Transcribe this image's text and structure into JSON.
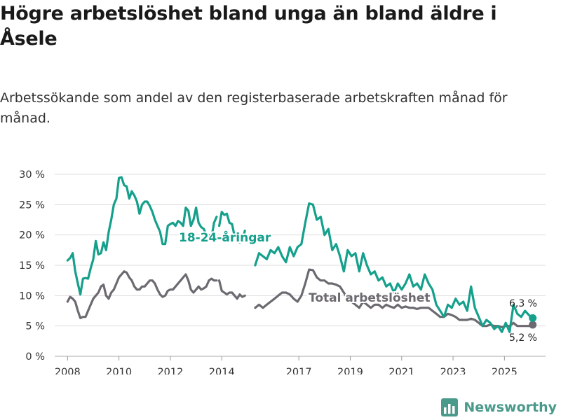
{
  "title": "Högre arbetslöshet bland unga än bland äldre i Åsele",
  "subtitle": "Arbetssökande som andel av den registerbaserade arbetskraften månad för månad.",
  "brand": {
    "name": "Newsworthy",
    "icon": "bar-chart-logo-icon",
    "color": "#4a9a8c"
  },
  "chart_data": {
    "type": "line",
    "ylim": [
      0,
      30
    ],
    "xlim": [
      2007.5,
      2026.6
    ],
    "yticks": [
      {
        "value": 0,
        "label": "0 %"
      },
      {
        "value": 5,
        "label": "5 %"
      },
      {
        "value": 10,
        "label": "10 %"
      },
      {
        "value": 15,
        "label": "15 %"
      },
      {
        "value": 20,
        "label": "20 %"
      },
      {
        "value": 25,
        "label": "25 %"
      },
      {
        "value": 30,
        "label": "30 %"
      }
    ],
    "xticks": [
      {
        "value": 2008,
        "label": "2008"
      },
      {
        "value": 2010,
        "label": "2010"
      },
      {
        "value": 2012,
        "label": "2012"
      },
      {
        "value": 2014,
        "label": "2014"
      },
      {
        "value": 2017,
        "label": "2017"
      },
      {
        "value": 2019,
        "label": "2019"
      },
      {
        "value": 2021,
        "label": "2021"
      },
      {
        "value": 2023,
        "label": "2023"
      },
      {
        "value": 2025,
        "label": "2025"
      }
    ],
    "grid": true,
    "series": [
      {
        "name": "18-24-åringar",
        "label": "18-24-åringar",
        "color": "#15a08c",
        "end_value_label": "6,3 %",
        "segments": [
          {
            "x": [
              2008.0,
              2008.1,
              2008.2,
              2008.3,
              2008.4,
              2008.5,
              2008.6,
              2008.7,
              2008.8,
              2008.9,
              2009.0,
              2009.1,
              2009.2,
              2009.3,
              2009.4,
              2009.5,
              2009.6,
              2009.7,
              2009.8,
              2009.9,
              2010.0,
              2010.1,
              2010.2,
              2010.3,
              2010.4,
              2010.5,
              2010.6,
              2010.7,
              2010.8,
              2010.9,
              2011.0,
              2011.1,
              2011.2,
              2011.3,
              2011.4,
              2011.5,
              2011.6,
              2011.7,
              2011.8,
              2011.9,
              2012.0,
              2012.1,
              2012.2,
              2012.3,
              2012.4,
              2012.5,
              2012.6,
              2012.7,
              2012.8,
              2012.9,
              2013.0,
              2013.1,
              2013.2,
              2013.3,
              2013.4,
              2013.5,
              2013.6,
              2013.7,
              2013.8
            ],
            "y": [
              15.8,
              16.2,
              17.0,
              14.0,
              12.0,
              10.2,
              12.8,
              12.9,
              12.8,
              14.5,
              16.0,
              19.0,
              16.8,
              17.0,
              18.8,
              17.5,
              20.5,
              22.5,
              25.0,
              26.0,
              29.4,
              29.5,
              28.2,
              28.0,
              26.0,
              27.2,
              26.5,
              25.5,
              23.5,
              25.0,
              25.5,
              25.5,
              24.8,
              23.8,
              22.5,
              21.5,
              20.5,
              18.5,
              18.5,
              21.5,
              21.8,
              22.0,
              21.5,
              22.3,
              22.0,
              21.5,
              24.5,
              24.0,
              21.5,
              22.5,
              24.5,
              22.0,
              21.3,
              21.0,
              20.0,
              20.0,
              19.5,
              22.0,
              23.0
            ]
          },
          {
            "x": [
              2013.9,
              2014.0,
              2014.1,
              2014.2,
              2014.3,
              2014.4,
              2014.5,
              2014.6,
              2014.7,
              2014.8,
              2014.9
            ],
            "y": [
              21.5,
              23.8,
              23.3,
              23.5,
              22.0,
              21.8,
              19.8,
              20.2,
              18.8,
              19.0,
              20.7
            ]
          },
          {
            "x": [
              2015.3,
              2015.45,
              2015.6,
              2015.75,
              2015.9,
              2016.05,
              2016.2,
              2016.35,
              2016.5,
              2016.65,
              2016.8,
              2016.95,
              2017.1,
              2017.25,
              2017.4,
              2017.55,
              2017.7,
              2017.85,
              2018.0,
              2018.15,
              2018.3,
              2018.45,
              2018.6,
              2018.75,
              2018.9,
              2019.05,
              2019.2,
              2019.35,
              2019.5,
              2019.65,
              2019.8,
              2019.95,
              2020.1,
              2020.25,
              2020.4,
              2020.55,
              2020.7,
              2020.85,
              2021.0,
              2021.15,
              2021.3,
              2021.45,
              2021.6,
              2021.75,
              2021.9,
              2022.05,
              2022.2,
              2022.35,
              2022.5,
              2022.65,
              2022.8,
              2022.95,
              2023.1,
              2023.25,
              2023.4,
              2023.55,
              2023.7,
              2023.85,
              2024.0,
              2024.15,
              2024.3,
              2024.45,
              2024.6,
              2024.75,
              2024.9,
              2025.05,
              2025.2,
              2025.35,
              2025.5,
              2025.65,
              2025.8,
              2025.95,
              2026.1
            ],
            "y": [
              15.0,
              17.0,
              16.5,
              16.0,
              17.5,
              17.0,
              18.0,
              16.5,
              15.5,
              18.0,
              16.5,
              18.0,
              18.5,
              22.0,
              25.2,
              25.0,
              22.5,
              23.0,
              20.0,
              21.0,
              17.5,
              18.5,
              16.5,
              14.0,
              17.5,
              16.5,
              17.0,
              14.0,
              17.0,
              15.0,
              13.5,
              14.0,
              12.5,
              13.0,
              11.5,
              12.0,
              10.5,
              12.0,
              11.0,
              12.0,
              13.5,
              11.5,
              12.0,
              11.0,
              13.5,
              12.0,
              11.0,
              8.5,
              7.5,
              6.5,
              8.5,
              8.0,
              9.5,
              8.5,
              9.0,
              7.5,
              11.5,
              8.0,
              6.5,
              5.0,
              6.0,
              5.5,
              4.5,
              5.0,
              4.0,
              5.5,
              4.0,
              8.5,
              7.0,
              6.5,
              7.5,
              6.8,
              6.3
            ]
          }
        ]
      },
      {
        "name": "Total arbetslöshet",
        "label": "Total arbetslöshet",
        "color": "#6c6a70",
        "end_value_label": "5,2 %",
        "segments": [
          {
            "x": [
              2008.0,
              2008.1,
              2008.2,
              2008.3,
              2008.4,
              2008.5,
              2008.6,
              2008.7,
              2008.8,
              2008.9,
              2009.0,
              2009.1,
              2009.2,
              2009.3,
              2009.4,
              2009.5,
              2009.6,
              2009.7,
              2009.8,
              2009.9,
              2010.0,
              2010.1,
              2010.2,
              2010.3,
              2010.4,
              2010.5,
              2010.6,
              2010.7,
              2010.8,
              2010.9,
              2011.0,
              2011.1,
              2011.2,
              2011.3,
              2011.4,
              2011.5,
              2011.6,
              2011.7,
              2011.8,
              2011.9,
              2012.0,
              2012.1,
              2012.2,
              2012.3,
              2012.4,
              2012.5,
              2012.6,
              2012.7,
              2012.8,
              2012.9,
              2013.0,
              2013.1,
              2013.2,
              2013.3,
              2013.4,
              2013.5,
              2013.6,
              2013.7,
              2013.8
            ],
            "y": [
              9.0,
              9.8,
              9.5,
              9.0,
              7.5,
              6.3,
              6.5,
              6.5,
              7.5,
              8.5,
              9.5,
              10.0,
              10.5,
              11.5,
              11.8,
              10.0,
              9.5,
              10.5,
              11.0,
              12.0,
              13.0,
              13.5,
              14.0,
              13.8,
              13.0,
              12.5,
              11.5,
              11.0,
              11.0,
              11.5,
              11.5,
              12.0,
              12.5,
              12.5,
              12.0,
              11.0,
              10.2,
              9.8,
              10.0,
              10.8,
              11.0,
              11.0,
              11.5,
              12.0,
              12.5,
              13.0,
              13.5,
              12.5,
              11.0,
              10.5,
              11.0,
              11.5,
              11.0,
              11.2,
              11.5,
              12.5,
              12.8,
              12.5,
              12.5
            ]
          },
          {
            "x": [
              2013.9,
              2014.0,
              2014.1,
              2014.2,
              2014.3,
              2014.4,
              2014.5,
              2014.6,
              2014.7,
              2014.8,
              2014.9
            ],
            "y": [
              12.5,
              10.8,
              10.5,
              10.2,
              10.5,
              10.5,
              10.0,
              9.5,
              10.2,
              9.8,
              10.0
            ]
          },
          {
            "x": [
              2015.3,
              2015.45,
              2015.6,
              2015.75,
              2015.9,
              2016.05,
              2016.2,
              2016.35,
              2016.5,
              2016.65,
              2016.8,
              2016.95,
              2017.1,
              2017.25,
              2017.4,
              2017.55,
              2017.7,
              2017.85,
              2018.0,
              2018.15,
              2018.3,
              2018.45,
              2018.6,
              2018.75,
              2018.9,
              2019.05,
              2019.2,
              2019.35,
              2019.5,
              2019.65,
              2019.8,
              2019.95,
              2020.1,
              2020.25,
              2020.4,
              2020.55,
              2020.7,
              2020.85,
              2021.0,
              2021.15,
              2021.3,
              2021.45,
              2021.6,
              2021.75,
              2021.9,
              2022.05,
              2022.2,
              2022.35,
              2022.5,
              2022.65,
              2022.8,
              2022.95,
              2023.1,
              2023.25,
              2023.4,
              2023.55,
              2023.7,
              2023.85,
              2024.0,
              2024.15,
              2024.3,
              2024.45,
              2024.6,
              2024.75,
              2024.9,
              2025.05,
              2025.2,
              2025.35,
              2025.5,
              2025.65,
              2025.8,
              2025.95,
              2026.1
            ],
            "y": [
              8.0,
              8.5,
              8.0,
              8.5,
              9.0,
              9.5,
              10.0,
              10.5,
              10.5,
              10.2,
              9.5,
              9.0,
              10.0,
              12.0,
              14.3,
              14.2,
              13.0,
              12.5,
              12.5,
              12.0,
              12.0,
              11.8,
              11.5,
              10.5,
              9.5,
              9.0,
              8.5,
              8.0,
              9.0,
              8.5,
              8.0,
              8.5,
              8.5,
              8.0,
              8.5,
              8.2,
              8.0,
              8.5,
              8.0,
              8.2,
              8.0,
              8.0,
              7.8,
              8.0,
              8.0,
              8.0,
              7.5,
              7.0,
              6.5,
              6.5,
              7.0,
              6.8,
              6.5,
              6.0,
              6.0,
              6.0,
              6.2,
              6.0,
              5.5,
              5.0,
              5.0,
              5.2,
              5.0,
              5.0,
              4.8,
              5.0,
              5.0,
              5.5,
              5.0,
              5.0,
              5.0,
              5.0,
              5.2
            ]
          }
        ]
      }
    ]
  }
}
